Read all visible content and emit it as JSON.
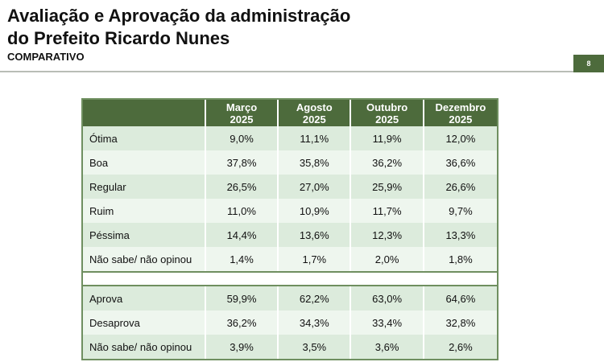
{
  "title_line1": "Avaliação e Aprovação da administração",
  "title_line2": "do Prefeito Ricardo Nunes",
  "subtitle": "COMPARATIVO",
  "page_number": "8",
  "colors": {
    "header": "#4d6b3c",
    "row_dark": "#dcebdc",
    "row_light": "#eef6ee"
  },
  "table": {
    "columns": [
      {
        "month": "Março",
        "year": "2025"
      },
      {
        "month": "Agosto",
        "year": "2025"
      },
      {
        "month": "Outubro",
        "year": "2025"
      },
      {
        "month": "Dezembro",
        "year": "2025"
      }
    ],
    "evaluation_rows": [
      {
        "label": "Ótima",
        "values": [
          "9,0%",
          "11,1%",
          "11,9%",
          "12,0%"
        ]
      },
      {
        "label": "Boa",
        "values": [
          "37,8%",
          "35,8%",
          "36,2%",
          "36,6%"
        ]
      },
      {
        "label": "Regular",
        "values": [
          "26,5%",
          "27,0%",
          "25,9%",
          "26,6%"
        ]
      },
      {
        "label": "Ruim",
        "values": [
          "11,0%",
          "10,9%",
          "11,7%",
          "9,7%"
        ]
      },
      {
        "label": "Péssima",
        "values": [
          "14,4%",
          "13,6%",
          "12,3%",
          "13,3%"
        ]
      },
      {
        "label": "Não sabe/ não opinou",
        "values": [
          "1,4%",
          "1,7%",
          "2,0%",
          "1,8%"
        ]
      }
    ],
    "approval_rows": [
      {
        "label": "Aprova",
        "values": [
          "59,9%",
          "62,2%",
          "63,0%",
          "64,6%"
        ]
      },
      {
        "label": "Desaprova",
        "values": [
          "36,2%",
          "34,3%",
          "33,4%",
          "32,8%"
        ]
      },
      {
        "label": "Não sabe/ não opinou",
        "values": [
          "3,9%",
          "3,5%",
          "3,6%",
          "2,6%"
        ]
      }
    ]
  }
}
